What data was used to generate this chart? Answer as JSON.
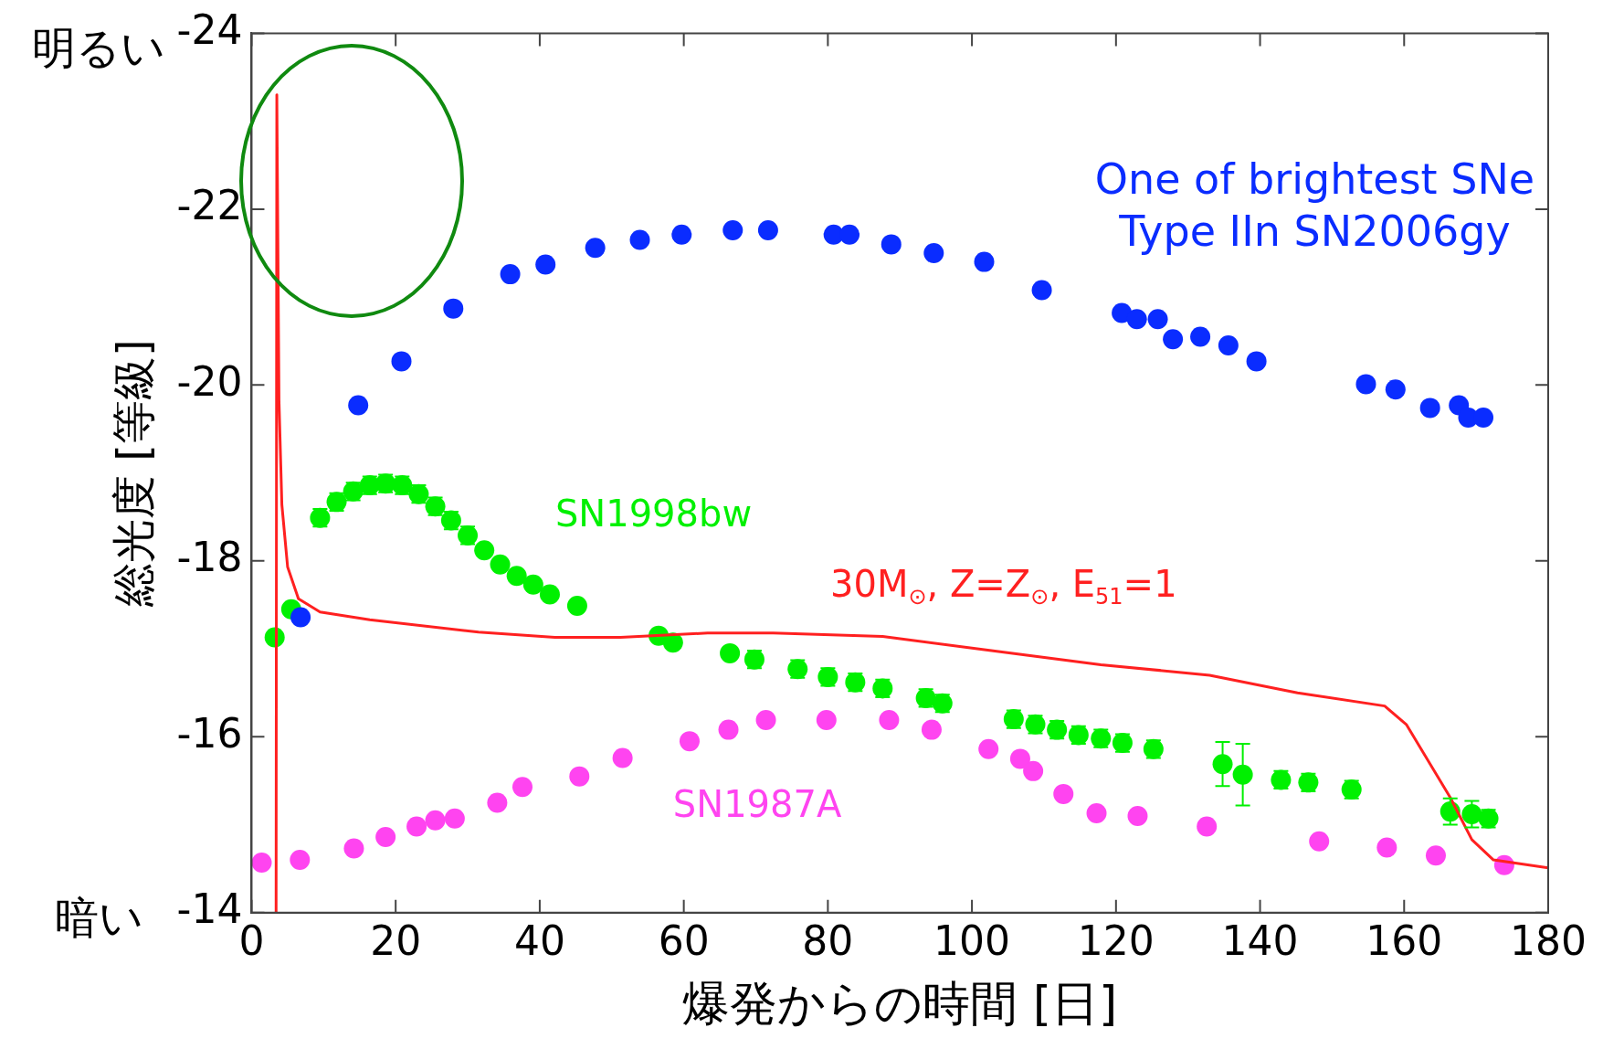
{
  "chart_data": {
    "type": "scatter",
    "xlabel": "爆発からの時間 [日]",
    "ylabel": "総光度 [等級]",
    "xlim": [
      0,
      180
    ],
    "xticks": [
      0,
      20,
      40,
      60,
      80,
      100,
      120,
      140,
      160,
      180
    ],
    "ylim": [
      -14,
      -24
    ],
    "yticks": [
      -24,
      -22,
      -20,
      -18,
      -16,
      -14
    ],
    "grid": false,
    "legend": false,
    "marker": "circle",
    "annotations": [
      "明るい",
      "暗い"
    ],
    "series": [
      {
        "name": "One of brightest SNe\nType IIn SN2006gy",
        "color": "#0a2cff",
        "x": [
          6.8,
          14.8,
          20.8,
          28,
          35.9,
          40.8,
          47.7,
          53.9,
          59.7,
          66.8,
          71.7,
          80.8,
          83,
          88.8,
          94.7,
          101.7,
          109.7,
          120.8,
          122.9,
          125.8,
          127.9,
          131.7,
          135.6,
          139.5,
          154.7,
          158.8,
          163.6,
          167.6,
          168.9,
          171
        ],
        "values": [
          -17.36,
          -19.77,
          -20.27,
          -20.87,
          -21.26,
          -21.37,
          -21.56,
          -21.65,
          -21.71,
          -21.76,
          -21.76,
          -21.71,
          -21.71,
          -21.6,
          -21.5,
          -21.4,
          -21.08,
          -20.82,
          -20.75,
          -20.75,
          -20.52,
          -20.55,
          -20.45,
          -20.27,
          -20.01,
          -19.95,
          -19.74,
          -19.77,
          -19.63,
          -19.63
        ]
      },
      {
        "name": "SN1998bw",
        "color": "#00f000",
        "x": [
          3.2,
          5.5,
          9.5,
          11.8,
          14.1,
          16.4,
          18.6,
          20.9,
          23.2,
          25.5,
          27.7,
          30,
          32.3,
          34.5,
          36.8,
          39.1,
          41.4,
          45.2,
          56.5,
          58.5,
          66.4,
          69.8,
          75.8,
          80,
          83.8,
          87.6,
          93.6,
          95.9,
          105.8,
          108.8,
          111.8,
          114.8,
          117.9,
          120.9,
          125.2,
          134.8,
          137.6,
          142.9,
          146.7,
          152.7,
          166.4,
          169.4,
          171.7
        ],
        "values": [
          -17.13,
          -17.45,
          -18.49,
          -18.67,
          -18.79,
          -18.86,
          -18.88,
          -18.86,
          -18.76,
          -18.62,
          -18.46,
          -18.29,
          -18.12,
          -17.96,
          -17.83,
          -17.73,
          -17.62,
          -17.49,
          -17.15,
          -17.07,
          -16.95,
          -16.88,
          -16.77,
          -16.68,
          -16.62,
          -16.55,
          -16.44,
          -16.38,
          -16.2,
          -16.14,
          -16.08,
          -16.02,
          -15.98,
          -15.93,
          -15.86,
          -15.69,
          -15.57,
          -15.51,
          -15.48,
          -15.4,
          -15.15,
          -15.12,
          -15.07
        ],
        "errors": [
          null,
          null,
          0.1,
          0.1,
          0.1,
          0.1,
          0.1,
          0.1,
          0.1,
          0.1,
          0.1,
          0.1,
          null,
          null,
          null,
          null,
          null,
          null,
          null,
          null,
          null,
          0.1,
          0.1,
          0.1,
          0.1,
          0.1,
          0.1,
          0.1,
          0.1,
          0.1,
          0.1,
          0.1,
          0.1,
          0.1,
          0.1,
          0.25,
          0.35,
          0.1,
          0.1,
          0.1,
          0.15,
          0.15,
          0.1
        ]
      },
      {
        "name": "SN1987A",
        "color": "#ff44f0",
        "x": [
          1.4,
          6.7,
          14.2,
          18.6,
          22.9,
          25.5,
          28.2,
          34.1,
          37.6,
          45.5,
          51.5,
          60.8,
          66.2,
          71.4,
          79.8,
          88.5,
          94.4,
          102.3,
          106.7,
          108.5,
          112.7,
          117.3,
          123,
          132.6,
          148.2,
          157.6,
          164.4,
          173.9
        ],
        "values": [
          -14.57,
          -14.6,
          -14.73,
          -14.86,
          -14.98,
          -15.05,
          -15.07,
          -15.25,
          -15.43,
          -15.55,
          -15.76,
          -15.95,
          -16.08,
          -16.19,
          -16.19,
          -16.19,
          -16.08,
          -15.86,
          -15.75,
          -15.61,
          -15.35,
          -15.13,
          -15.1,
          -14.98,
          -14.81,
          -14.74,
          -14.65,
          -14.54
        ]
      },
      {
        "name": "30M$_{⊙}$, Z=Z$_{⊙}$, E$_{51}$=1",
        "type": "line",
        "marker": "none",
        "color": "#ff2020",
        "x": [
          3.4,
          3.5,
          3.8,
          4.2,
          5,
          6.5,
          9.5,
          16.4,
          31.5,
          42.1,
          51.2,
          63.3,
          72.4,
          87.6,
          102.7,
          117.9,
          133,
          145.2,
          157.3,
          160.3,
          166.4,
          169.4,
          172.4,
          180
        ],
        "values": [
          -14,
          -23.3,
          -19.83,
          -18.64,
          -17.93,
          -17.57,
          -17.42,
          -17.33,
          -17.19,
          -17.13,
          -17.13,
          -17.18,
          -17.18,
          -17.14,
          -16.98,
          -16.82,
          -16.7,
          -16.5,
          -16.35,
          -16.14,
          -15.31,
          -14.83,
          -14.6,
          -14.51
        ]
      }
    ]
  }
}
